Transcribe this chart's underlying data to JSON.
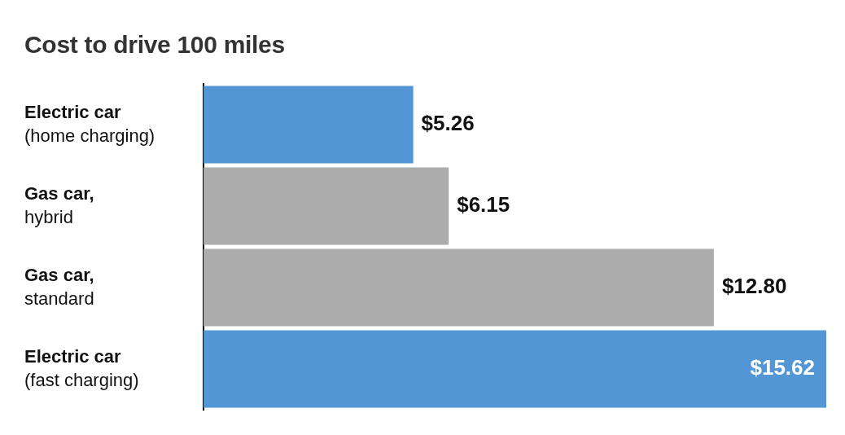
{
  "chart_data": {
    "type": "bar",
    "orientation": "horizontal",
    "title": "Cost to drive 100 miles",
    "categories": [
      "Electric car\n(home charging)",
      "Gas car,\nhybrid",
      "Gas car,\nstandard",
      "Electric car\n(fast charging)"
    ],
    "values": [
      5.26,
      6.15,
      12.8,
      15.62
    ],
    "colors": [
      "#5296d5",
      "#acacac",
      "#acacac",
      "#5296d5"
    ],
    "value_labels": [
      "$5.26",
      "$6.15",
      "$12.80",
      "$15.62"
    ],
    "legend": false
  }
}
